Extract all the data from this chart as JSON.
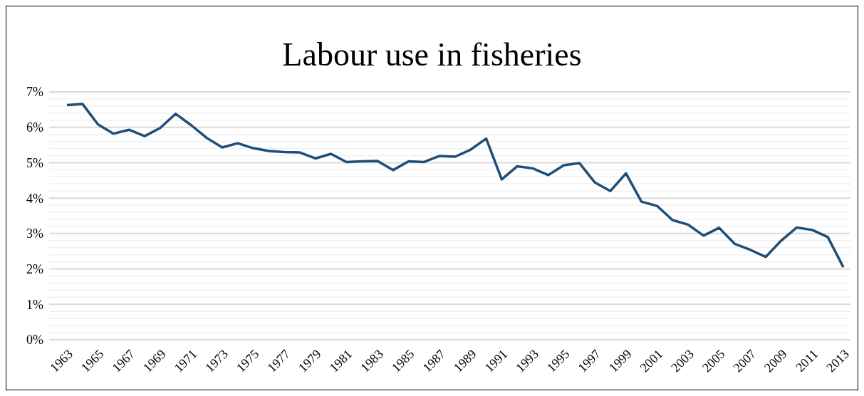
{
  "chart_data": {
    "type": "line",
    "title": "Labour use in fisheries",
    "categories": [
      "1963",
      null,
      "1965",
      null,
      "1967",
      null,
      "1969",
      null,
      "1971",
      null,
      "1973",
      null,
      "1975",
      null,
      "1977",
      null,
      "1979",
      null,
      "1981",
      null,
      "1983",
      null,
      "1985",
      null,
      "1987",
      null,
      "1989",
      null,
      "1991",
      null,
      "1993",
      null,
      "1995",
      null,
      "1997",
      null,
      "1999",
      null,
      "2001",
      null,
      "2003",
      null,
      "2005",
      null,
      "2007",
      null,
      "2009",
      null,
      "2011",
      null,
      "2013"
    ],
    "series": [
      {
        "color": "#1f4e79",
        "values": [
          6.63,
          6.66,
          6.08,
          5.82,
          5.93,
          5.75,
          5.98,
          6.38,
          6.06,
          5.7,
          5.43,
          5.55,
          5.41,
          5.33,
          5.3,
          5.29,
          5.12,
          5.25,
          5.02,
          5.04,
          5.05,
          4.79,
          5.04,
          5.02,
          5.19,
          5.17,
          5.37,
          5.68,
          4.53,
          4.9,
          4.84,
          4.65,
          4.93,
          4.99,
          4.44,
          4.2,
          4.7,
          3.9,
          3.78,
          3.38,
          3.25,
          2.94,
          3.16,
          2.71,
          2.54,
          2.34,
          2.8,
          3.17,
          3.1,
          2.9,
          2.05
        ]
      }
    ],
    "ylim": [
      0,
      7
    ],
    "yticks": [
      {
        "value": 0,
        "label": "0%"
      },
      {
        "value": 0.2,
        "label": null
      },
      {
        "value": 0.4,
        "label": null
      },
      {
        "value": 0.6,
        "label": null
      },
      {
        "value": 0.8,
        "label": null
      },
      {
        "value": 1,
        "label": "1%"
      },
      {
        "value": 1.2,
        "label": null
      },
      {
        "value": 1.4,
        "label": null
      },
      {
        "value": 1.6,
        "label": null
      },
      {
        "value": 1.8,
        "label": null
      },
      {
        "value": 2,
        "label": "2%"
      },
      {
        "value": 2.2,
        "label": null
      },
      {
        "value": 2.4,
        "label": null
      },
      {
        "value": 2.6,
        "label": null
      },
      {
        "value": 2.8,
        "label": null
      },
      {
        "value": 3,
        "label": "3%"
      },
      {
        "value": 3.2,
        "label": null
      },
      {
        "value": 3.4,
        "label": null
      },
      {
        "value": 3.6,
        "label": null
      },
      {
        "value": 3.8,
        "label": null
      },
      {
        "value": 4,
        "label": "4%"
      },
      {
        "value": 4.2,
        "label": null
      },
      {
        "value": 4.4,
        "label": null
      },
      {
        "value": 4.6,
        "label": null
      },
      {
        "value": 4.8,
        "label": null
      },
      {
        "value": 5,
        "label": "5%"
      },
      {
        "value": 5.2,
        "label": null
      },
      {
        "value": 5.4,
        "label": null
      },
      {
        "value": 5.6,
        "label": null
      },
      {
        "value": 5.8,
        "label": null
      },
      {
        "value": 6,
        "label": "6%"
      },
      {
        "value": 6.2,
        "label": null
      },
      {
        "value": 6.4,
        "label": null
      },
      {
        "value": 6.6,
        "label": null
      },
      {
        "value": 6.8,
        "label": null
      },
      {
        "value": 7,
        "label": "7%"
      }
    ],
    "grid": "y",
    "marker": "none",
    "line_style": "solid"
  }
}
